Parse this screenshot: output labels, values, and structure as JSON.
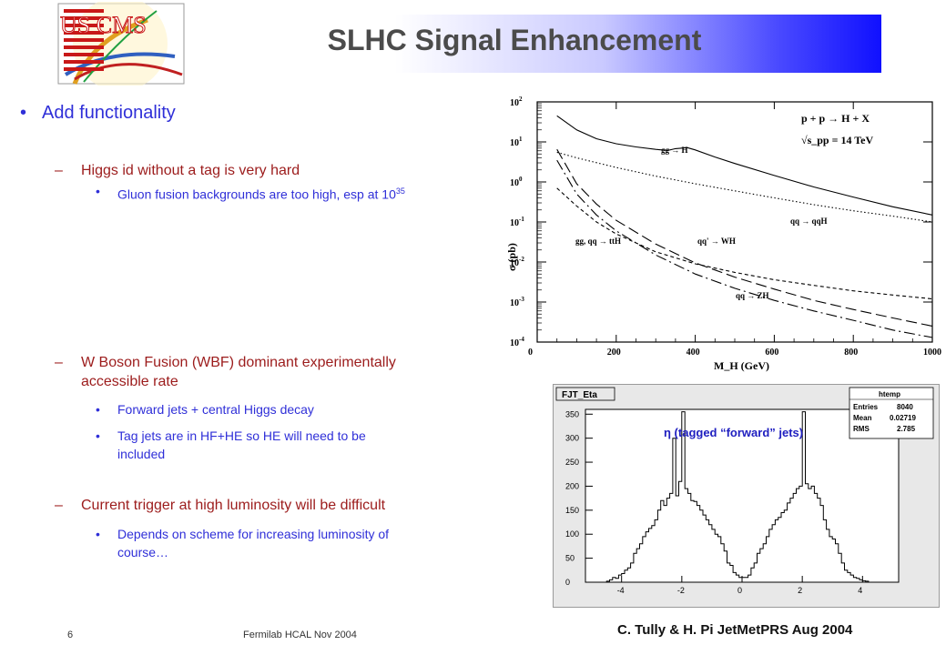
{
  "slide": {
    "title": "SLHC Signal Enhancement",
    "logo_text": "US CMS",
    "page_number": "6",
    "footer": "Fermilab HCAL Nov 2004",
    "credit": "C. Tully & H. Pi  JetMetPRS Aug 2004"
  },
  "content": {
    "l1_bullet": "•",
    "l1_text": "Add functionality",
    "dash": "–",
    "dot": "•",
    "item1": "Higgs id without a tag is very hard",
    "item1_sub1_text": "Gluon fusion backgrounds are too high, esp at 10",
    "item1_sub1_sup": "35",
    "item2_line1": "W Boson Fusion (WBF) dominant experimentally",
    "item2_line2": "accessible rate",
    "item2_sub1": "Forward jets + central Higgs decay",
    "item2_sub2_line1": "Tag jets are in HF+HE so HE will need to be",
    "item2_sub2_line2": "included",
    "item3": "Current trigger at high luminosity will be difficult",
    "item3_sub1_line1": "Depends on scheme for increasing luminosity of",
    "item3_sub1_line2": "course…"
  },
  "colors": {
    "level1": "#2f2fd8",
    "level2": "#9c1c1c",
    "level3": "#2f2fd8",
    "title": "#4b4b4b"
  },
  "chart_data": [
    {
      "type": "line",
      "title": "",
      "xlabel": "M_H (GeV)",
      "ylabel": "σ (pb)",
      "xlim": [
        0,
        1000
      ],
      "ylim": [
        0.0001,
        100
      ],
      "yscale": "log",
      "x_ticks": [
        "0",
        "200",
        "400",
        "600",
        "800",
        "1000"
      ],
      "y_ticks": [
        "10^-4",
        "10^-3",
        "10^-2",
        "10^-1",
        "10^0",
        "10^1",
        "10^2"
      ],
      "annotation_process": "p + p → H + X",
      "annotation_energy": "√s_pp = 14 TeV",
      "series": [
        {
          "name": "gg → H",
          "style": "solid",
          "x": [
            50,
            100,
            150,
            200,
            250,
            300,
            330,
            350,
            380,
            400,
            450,
            500,
            600,
            700,
            800,
            900,
            1000
          ],
          "y": [
            45,
            20,
            12,
            9,
            7.5,
            6.5,
            6.1,
            6.8,
            7.2,
            6.3,
            4.2,
            2.9,
            1.45,
            0.75,
            0.42,
            0.24,
            0.15
          ]
        },
        {
          "name": "qq → qqH",
          "style": "dotted",
          "x": [
            50,
            100,
            200,
            300,
            400,
            500,
            600,
            700,
            800,
            900,
            1000
          ],
          "y": [
            5.5,
            4.0,
            2.3,
            1.4,
            0.9,
            0.6,
            0.4,
            0.27,
            0.19,
            0.14,
            0.1
          ]
        },
        {
          "name": "qq' → WH",
          "style": "long-dash",
          "x": [
            50,
            100,
            150,
            200,
            300,
            400,
            500,
            600,
            700,
            800,
            900,
            1000
          ],
          "y": [
            6.5,
            0.9,
            0.28,
            0.11,
            0.028,
            0.0095,
            0.0042,
            0.0021,
            0.0011,
            0.00065,
            0.0004,
            0.00025
          ]
        },
        {
          "name": "qq → ZH",
          "style": "dash-dot",
          "x": [
            50,
            100,
            150,
            200,
            300,
            400,
            500,
            600,
            700,
            800,
            900,
            1000
          ],
          "y": [
            3.5,
            0.5,
            0.15,
            0.06,
            0.015,
            0.005,
            0.0022,
            0.0011,
            0.0006,
            0.00035,
            0.0002,
            0.00013
          ]
        },
        {
          "name": "gg, qq → ttH",
          "style": "short-dash",
          "x": [
            50,
            100,
            150,
            200,
            300,
            400,
            500,
            600,
            700,
            800,
            900,
            1000
          ],
          "y": [
            0.7,
            0.25,
            0.1,
            0.05,
            0.018,
            0.009,
            0.0055,
            0.0036,
            0.0026,
            0.0019,
            0.0015,
            0.0012
          ]
        }
      ]
    },
    {
      "type": "histogram",
      "title": "FJT_Eta",
      "annotation": "η (tagged “forward” jets)",
      "xlim": [
        -5.2,
        5.2
      ],
      "ylim": [
        0,
        360
      ],
      "x_ticks": [
        "-4",
        "-2",
        "0",
        "2",
        "4"
      ],
      "y_ticks": [
        "0",
        "50",
        "100",
        "150",
        "200",
        "250",
        "300",
        "350"
      ],
      "stats_box": {
        "name": "htemp",
        "entries_label": "Entries",
        "entries": "8040",
        "mean_label": "Mean",
        "mean": "0.02719",
        "rms_label": "RMS",
        "rms": "2.785"
      },
      "bin_edges_start": -5.0,
      "bin_width": 0.1,
      "values": [
        0,
        0,
        0,
        0,
        0,
        2,
        5,
        10,
        8,
        15,
        18,
        25,
        30,
        40,
        60,
        70,
        80,
        95,
        105,
        112,
        118,
        130,
        150,
        170,
        160,
        175,
        185,
        300,
        180,
        210,
        355,
        195,
        185,
        170,
        168,
        160,
        150,
        140,
        130,
        120,
        110,
        100,
        95,
        80,
        65,
        40,
        35,
        20,
        15,
        10,
        10,
        10,
        15,
        30,
        40,
        60,
        70,
        80,
        95,
        110,
        120,
        130,
        135,
        145,
        150,
        165,
        175,
        185,
        195,
        200,
        355,
        205,
        195,
        200,
        185,
        175,
        160,
        130,
        110,
        95,
        90,
        80,
        60,
        40,
        25,
        20,
        15,
        10,
        8,
        5,
        3,
        2,
        0,
        0,
        0,
        0,
        0,
        0,
        0,
        0
      ]
    }
  ]
}
